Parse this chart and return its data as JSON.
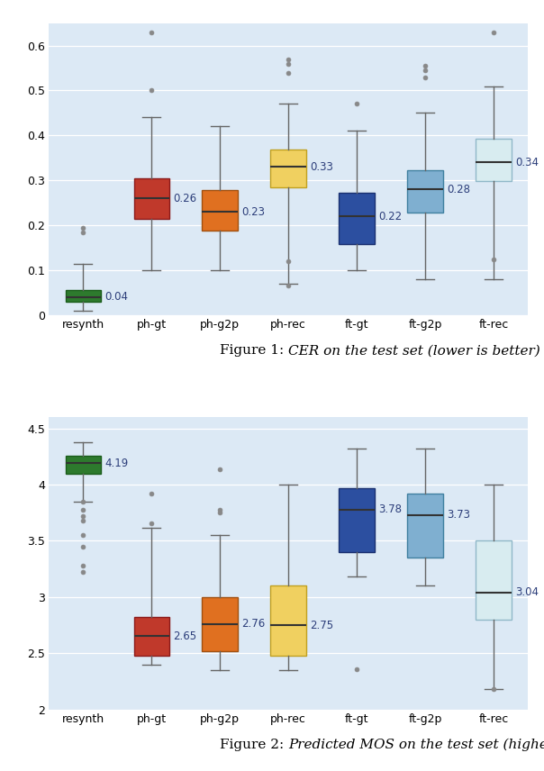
{
  "categories": [
    "resynth",
    "ph-gt",
    "ph-g2p",
    "ph-rec",
    "ft-gt",
    "ft-g2p",
    "ft-rec"
  ],
  "colors": [
    "#2d7a2d",
    "#c0392b",
    "#e07020",
    "#f0d060",
    "#2c4fa0",
    "#7fafd0",
    "#d8ecf0"
  ],
  "edge_colors": [
    "#1a5c1a",
    "#8b1a1a",
    "#a05010",
    "#c0a020",
    "#1a3070",
    "#4080a0",
    "#90b8c8"
  ],
  "fig1": {
    "title_prefix": "Figure 1: ",
    "title_italic": "CER on the test set (lower is better)",
    "ylim": [
      0,
      0.65
    ],
    "yticks": [
      0,
      0.1,
      0.2,
      0.3,
      0.4,
      0.5,
      0.6
    ],
    "medians": [
      0.04,
      0.26,
      0.23,
      0.33,
      0.22,
      0.28,
      0.34
    ],
    "whiskers_low": [
      0.01,
      0.1,
      0.1,
      0.07,
      0.1,
      0.08,
      0.08
    ],
    "whiskers_high": [
      0.115,
      0.44,
      0.42,
      0.47,
      0.41,
      0.45,
      0.51
    ],
    "q1": [
      0.03,
      0.215,
      0.188,
      0.285,
      0.158,
      0.228,
      0.298
    ],
    "q3": [
      0.055,
      0.305,
      0.278,
      0.368,
      0.272,
      0.322,
      0.392
    ],
    "outliers": [
      [
        0.185,
        0.195
      ],
      [
        0.5,
        0.63
      ],
      [],
      [
        0.065,
        0.12,
        0.54,
        0.56,
        0.57
      ],
      [
        0.47
      ],
      [
        0.53,
        0.545,
        0.555
      ],
      [
        0.63,
        0.125
      ]
    ]
  },
  "fig2": {
    "title_prefix": "Figure 2: ",
    "title_italic": "Predicted MOS on the test set (higher is better)",
    "ylim": [
      2.0,
      4.6
    ],
    "yticks": [
      2.0,
      2.5,
      3.0,
      3.5,
      4.0,
      4.5
    ],
    "medians": [
      4.19,
      2.65,
      2.76,
      2.75,
      3.78,
      3.73,
      3.04
    ],
    "whiskers_low": [
      3.85,
      2.4,
      2.35,
      2.35,
      3.18,
      3.1,
      2.18
    ],
    "whiskers_high": [
      4.38,
      3.62,
      3.55,
      4.0,
      4.32,
      4.32,
      4.0
    ],
    "q1": [
      4.1,
      2.48,
      2.52,
      2.48,
      3.4,
      3.35,
      2.8
    ],
    "q3": [
      4.26,
      2.82,
      3.0,
      3.1,
      3.97,
      3.92,
      3.5
    ],
    "outliers": [
      [
        3.22,
        3.28,
        3.45,
        3.55,
        3.68,
        3.72,
        3.78,
        3.85
      ],
      [
        3.66,
        3.92
      ],
      [
        4.14,
        3.75,
        3.78
      ],
      [],
      [
        2.36
      ],
      [],
      [
        2.18
      ]
    ]
  },
  "plot_bg": "#dce9f5",
  "figure_bg": "#ffffff",
  "text_color": "#2c3e7a",
  "median_label_fontsize": 8.5,
  "tick_fontsize": 9,
  "caption_fontsize": 11
}
